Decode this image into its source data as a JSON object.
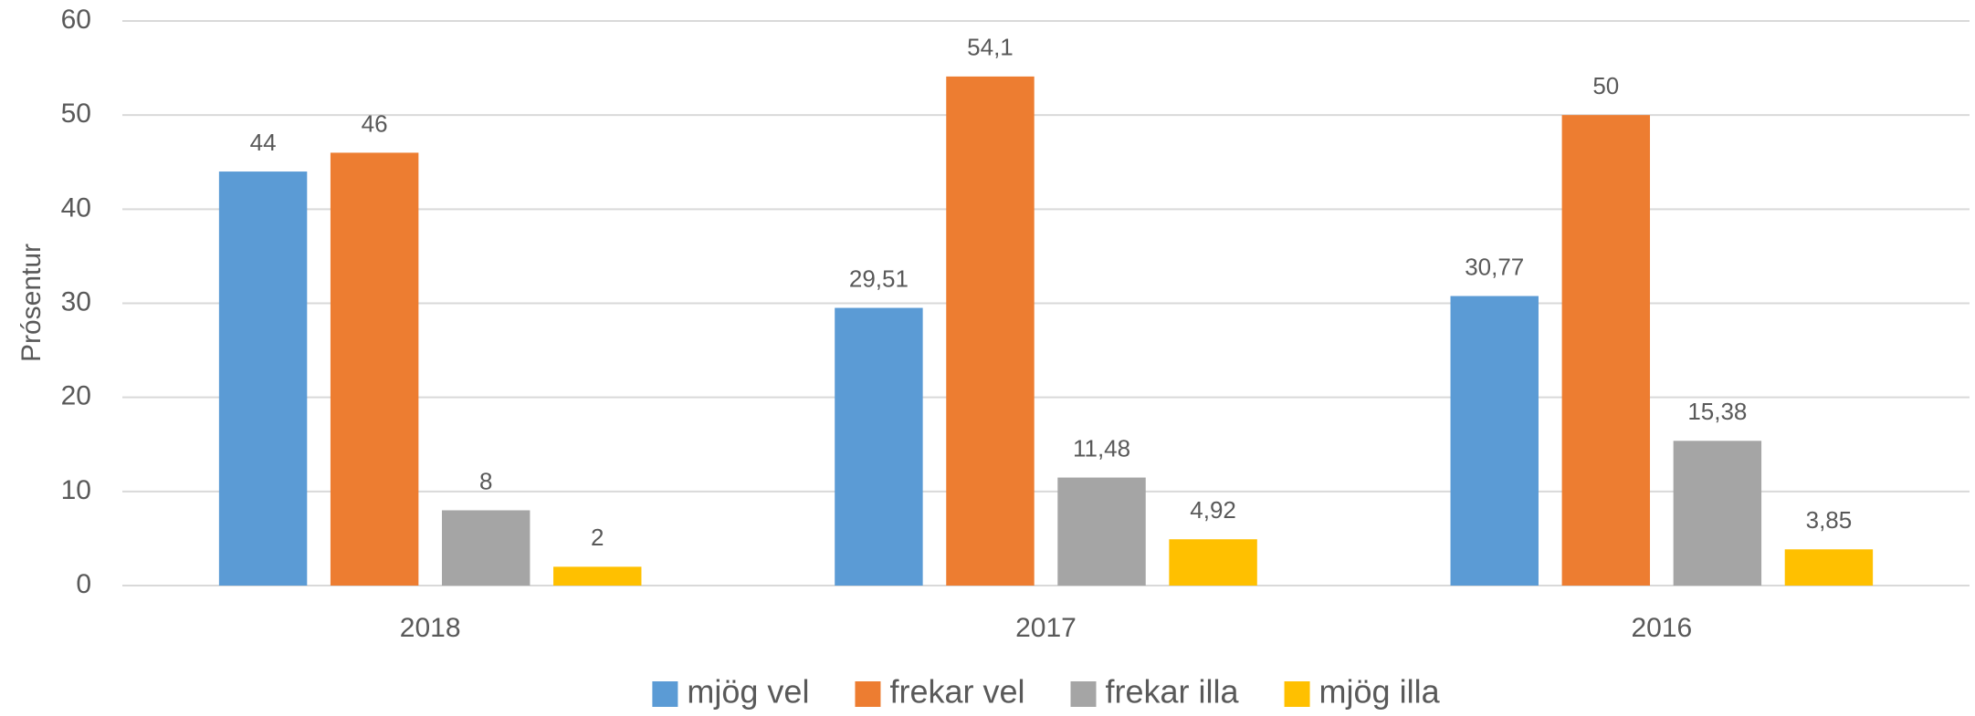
{
  "chart_data": {
    "type": "bar",
    "y_label": "Prósentur",
    "categories": [
      "2018",
      "2017",
      "2016"
    ],
    "series": [
      {
        "name": "mjög vel",
        "color": "#5b9bd5",
        "values": [
          44,
          29.51,
          30.77
        ],
        "value_labels": [
          "44",
          "29,51",
          "30,77"
        ]
      },
      {
        "name": "frekar vel",
        "color": "#ed7d31",
        "values": [
          46,
          54.1,
          50
        ],
        "value_labels": [
          "46",
          "54,1",
          "50"
        ]
      },
      {
        "name": "frekar illa",
        "color": "#a5a5a5",
        "values": [
          8,
          11.48,
          15.38
        ],
        "value_labels": [
          "8",
          "11,48",
          "15,38"
        ]
      },
      {
        "name": "mjög illa",
        "color": "#ffc000",
        "values": [
          2,
          4.92,
          3.85
        ],
        "value_labels": [
          "2",
          "4,92",
          "3,85"
        ]
      }
    ],
    "ylim": [
      0,
      60
    ],
    "yticks": [
      0,
      10,
      20,
      30,
      40,
      50,
      60
    ],
    "grid": true,
    "legend": "bottom"
  }
}
